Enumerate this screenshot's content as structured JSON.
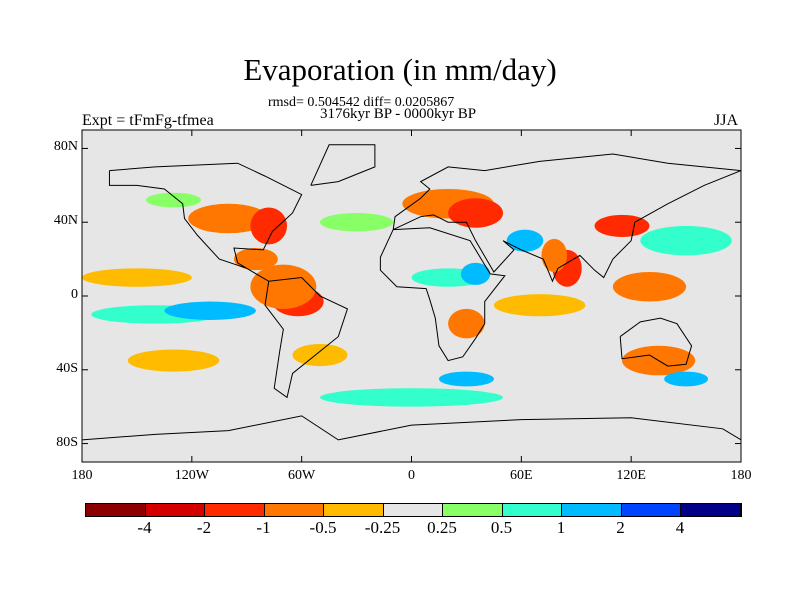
{
  "title": "Evaporation (in mm/day)",
  "stats": "rmsd= 0.504542 diff= 0.0205867",
  "period": "3176kyr BP - 0000kyr BP",
  "experiment": "Expt = tFmFg-tfmea",
  "season": "JJA",
  "chart_data": {
    "type": "heatmap",
    "title": "Evaporation (in mm/day)",
    "lat_ticks": [
      "80N",
      "40N",
      "0",
      "40S",
      "80S"
    ],
    "lat_values": [
      80,
      40,
      0,
      -40,
      -80
    ],
    "lon_ticks": [
      "180",
      "120W",
      "60W",
      "0",
      "60E",
      "120E",
      "180"
    ],
    "lon_values": [
      -180,
      -120,
      -60,
      0,
      60,
      120,
      180
    ],
    "xlim": [
      -180,
      180
    ],
    "ylim": [
      -90,
      90
    ],
    "colorbar": {
      "labels": [
        "-4",
        "-2",
        "-1",
        "-0.5",
        "-0.25",
        "0.25",
        "0.5",
        "1",
        "2",
        "4"
      ],
      "colors": [
        "#8b0000",
        "#d40000",
        "#ff2a00",
        "#ff7700",
        "#ffbb00",
        "#e6e6e6",
        "#88ff66",
        "#33ffcc",
        "#00bbff",
        "#0044ff",
        "#000088"
      ]
    },
    "background_color": "#e6e6e6",
    "approximate_field": [
      {
        "lon": -100,
        "lat": 42,
        "rx": 22,
        "ry": 8,
        "level": 3
      },
      {
        "lon": -78,
        "lat": 38,
        "rx": 10,
        "ry": 10,
        "level": 2
      },
      {
        "lon": -85,
        "lat": 20,
        "rx": 12,
        "ry": 6,
        "level": 3
      },
      {
        "lon": -62,
        "lat": -3,
        "rx": 14,
        "ry": 8,
        "level": 2
      },
      {
        "lon": -70,
        "lat": 5,
        "rx": 18,
        "ry": 12,
        "level": 3
      },
      {
        "lon": -150,
        "lat": 10,
        "rx": 30,
        "ry": 5,
        "level": 4
      },
      {
        "lon": -140,
        "lat": -10,
        "rx": 35,
        "ry": 5,
        "level": 7
      },
      {
        "lon": -110,
        "lat": -8,
        "rx": 25,
        "ry": 5,
        "level": 8
      },
      {
        "lon": -130,
        "lat": -35,
        "rx": 25,
        "ry": 6,
        "level": 4
      },
      {
        "lon": -50,
        "lat": -32,
        "rx": 15,
        "ry": 6,
        "level": 4
      },
      {
        "lon": -30,
        "lat": 40,
        "rx": 20,
        "ry": 5,
        "level": 6
      },
      {
        "lon": -130,
        "lat": 52,
        "rx": 15,
        "ry": 4,
        "level": 6
      },
      {
        "lon": 20,
        "lat": 50,
        "rx": 25,
        "ry": 8,
        "level": 3
      },
      {
        "lon": 35,
        "lat": 45,
        "rx": 15,
        "ry": 8,
        "level": 2
      },
      {
        "lon": 20,
        "lat": 10,
        "rx": 20,
        "ry": 5,
        "level": 7
      },
      {
        "lon": 35,
        "lat": 12,
        "rx": 8,
        "ry": 6,
        "level": 8
      },
      {
        "lon": 30,
        "lat": -15,
        "rx": 10,
        "ry": 8,
        "level": 3
      },
      {
        "lon": 70,
        "lat": -5,
        "rx": 25,
        "ry": 6,
        "level": 4
      },
      {
        "lon": 85,
        "lat": 15,
        "rx": 8,
        "ry": 10,
        "level": 2
      },
      {
        "lon": 78,
        "lat": 22,
        "rx": 7,
        "ry": 9,
        "level": 3
      },
      {
        "lon": 62,
        "lat": 30,
        "rx": 10,
        "ry": 6,
        "level": 8
      },
      {
        "lon": 115,
        "lat": 38,
        "rx": 15,
        "ry": 6,
        "level": 2
      },
      {
        "lon": 130,
        "lat": 5,
        "rx": 20,
        "ry": 8,
        "level": 3
      },
      {
        "lon": 135,
        "lat": -35,
        "rx": 20,
        "ry": 8,
        "level": 3
      },
      {
        "lon": 150,
        "lat": -45,
        "rx": 12,
        "ry": 4,
        "level": 8
      },
      {
        "lon": 150,
        "lat": 30,
        "rx": 25,
        "ry": 8,
        "level": 7
      },
      {
        "lon": 0,
        "lat": -55,
        "rx": 50,
        "ry": 5,
        "level": 7
      },
      {
        "lon": 30,
        "lat": -45,
        "rx": 15,
        "ry": 4,
        "level": 8
      }
    ]
  }
}
